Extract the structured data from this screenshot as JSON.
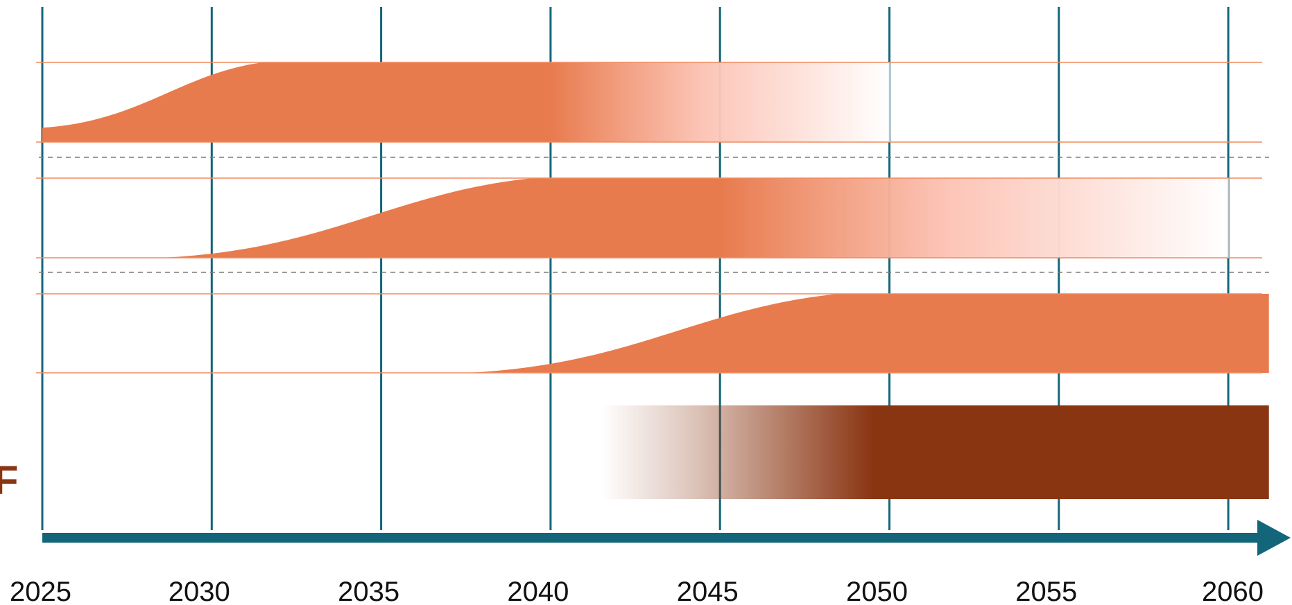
{
  "chart_data": {
    "type": "area",
    "title": "",
    "xlabel": "",
    "ylabel": "",
    "xlim": [
      2025,
      2061
    ],
    "x_ticks": [
      "2025",
      "2030",
      "2035",
      "2040",
      "2045",
      "2050",
      "2055",
      "2060"
    ],
    "grid": true,
    "colors": {
      "axis": "#13667a",
      "ramp": "#e87b4e",
      "ramp_fade": "#fcc2b3",
      "bar": "#8a3512",
      "guide": "#f28a5e",
      "divider": "#7a7a7a"
    },
    "series": [
      {
        "start": 2025,
        "start_level": 0.18,
        "ramp_end": 2031.5,
        "fade_from": 2040,
        "end": 2050,
        "end_level": 1.0
      },
      {
        "start": 2028.5,
        "start_level": 0.0,
        "ramp_end": 2039.5,
        "fade_from": 2045,
        "end": 2060,
        "end_level": 1.0
      },
      {
        "start": 2037.5,
        "start_level": 0.0,
        "ramp_end": 2048.5,
        "fade_from": null,
        "end": 2061.2,
        "end_level": 1.0
      }
    ],
    "bar": {
      "label": "F",
      "fade_start": 2041.5,
      "full_from": 2049.5,
      "end": 2061.2
    }
  }
}
